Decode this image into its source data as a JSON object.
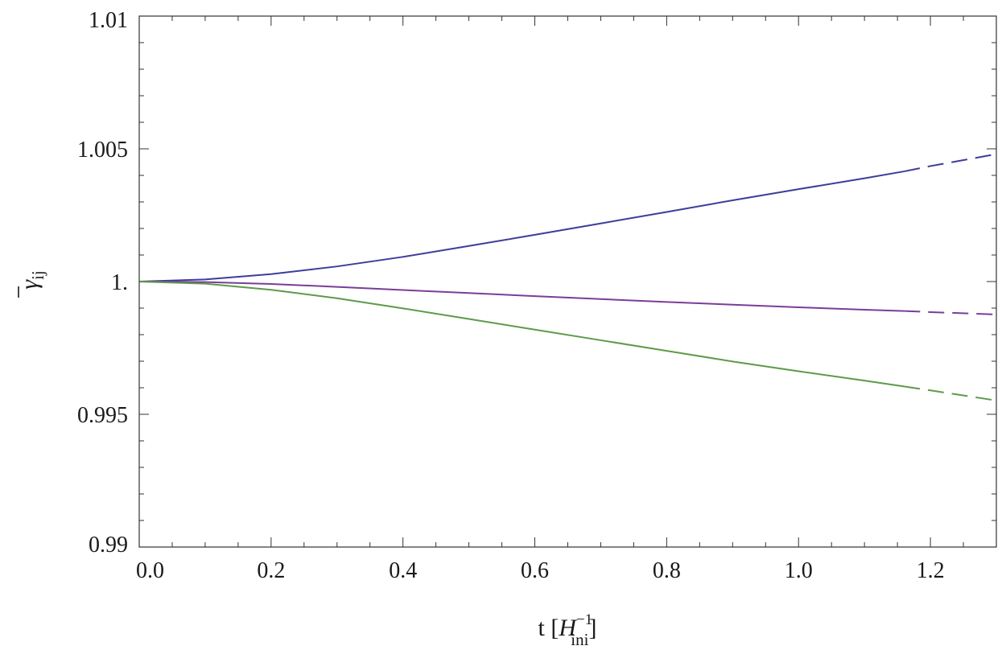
{
  "chart_data": {
    "type": "line",
    "xlabel": {
      "prefix": "t [",
      "symbol": "H",
      "superscript": "−1",
      "subscript": "ini",
      "suffix": "]"
    },
    "ylabel": {
      "symbol": "γ",
      "subscript": "ij",
      "overbar": true
    },
    "xlim": [
      0.0,
      1.3
    ],
    "ylim": [
      0.99,
      1.01
    ],
    "x_ticks": [
      0.0,
      0.2,
      0.4,
      0.6,
      0.8,
      1.0,
      1.2
    ],
    "x_tick_labels": [
      "0.0",
      "0.2",
      "0.4",
      "0.6",
      "0.8",
      "1.0",
      "1.2"
    ],
    "y_ticks": [
      0.99,
      0.995,
      1.0,
      1.005,
      1.01
    ],
    "y_tick_labels": [
      "0.99",
      "0.995",
      "1.",
      "1.005",
      "1.01"
    ],
    "x_minor_step": 0.05,
    "y_minor_step": 0.001,
    "grid": false,
    "solid_until_x": 1.16,
    "series": [
      {
        "color": "#3d3d9a",
        "x": [
          0.0,
          0.1,
          0.2,
          0.3,
          0.4,
          0.5,
          0.6,
          0.7,
          0.8,
          0.9,
          1.0,
          1.1,
          1.16,
          1.2,
          1.3
        ],
        "y": [
          1.0,
          1.00008,
          1.00028,
          1.00057,
          1.00093,
          1.00134,
          1.00176,
          1.00219,
          1.00262,
          1.00306,
          1.00348,
          1.00389,
          1.00415,
          1.00435,
          1.0048
        ]
      },
      {
        "color": "#7a3d9a",
        "x": [
          0.0,
          0.1,
          0.2,
          0.3,
          0.4,
          0.5,
          0.6,
          0.7,
          0.8,
          0.9,
          1.0,
          1.1,
          1.16,
          1.2,
          1.3
        ],
        "y": [
          1.0,
          0.99998,
          0.99991,
          0.9998,
          0.99968,
          0.99957,
          0.99945,
          0.99934,
          0.99923,
          0.99913,
          0.99903,
          0.99894,
          0.99889,
          0.99885,
          0.99876
        ]
      },
      {
        "color": "#5e9a4a",
        "x": [
          0.0,
          0.1,
          0.2,
          0.3,
          0.4,
          0.5,
          0.6,
          0.7,
          0.8,
          0.9,
          1.0,
          1.1,
          1.16,
          1.2,
          1.3
        ],
        "y": [
          1.0,
          0.99992,
          0.99969,
          0.99937,
          0.99899,
          0.99859,
          0.99819,
          0.99779,
          0.99739,
          0.99699,
          0.99662,
          0.99627,
          0.99605,
          0.9959,
          0.99552
        ]
      }
    ]
  }
}
